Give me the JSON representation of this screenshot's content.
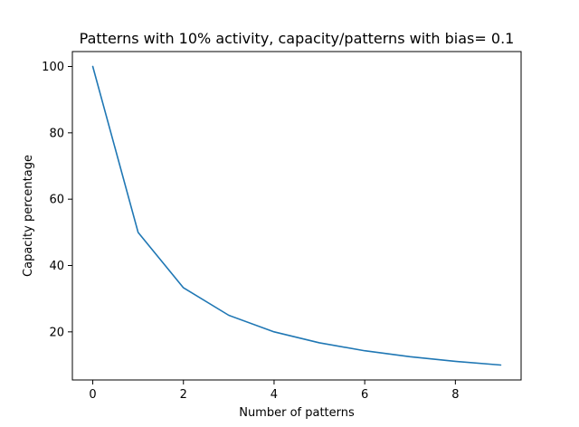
{
  "chart_data": {
    "type": "line",
    "title": "Patterns with 10% activity, capacity/patterns with bias= 0.1",
    "xlabel": "Number of patterns",
    "ylabel": "Capacity percentage",
    "xlim": [
      -0.45,
      9.45
    ],
    "ylim": [
      5.5,
      104.5
    ],
    "x_ticks": [
      0,
      2,
      4,
      6,
      8
    ],
    "y_ticks": [
      20,
      40,
      60,
      80,
      100
    ],
    "x_tick_labels": [
      "0",
      "2",
      "4",
      "6",
      "8"
    ],
    "y_tick_labels": [
      "20",
      "40",
      "60",
      "80",
      "100"
    ],
    "grid": false,
    "legend": false,
    "series": [
      {
        "color": "#1f77b4",
        "x": [
          0,
          1,
          2,
          3,
          4,
          5,
          6,
          7,
          8,
          9
        ],
        "values": [
          100,
          50,
          33.3,
          25,
          20,
          16.7,
          14.3,
          12.5,
          11.1,
          10
        ]
      }
    ]
  }
}
